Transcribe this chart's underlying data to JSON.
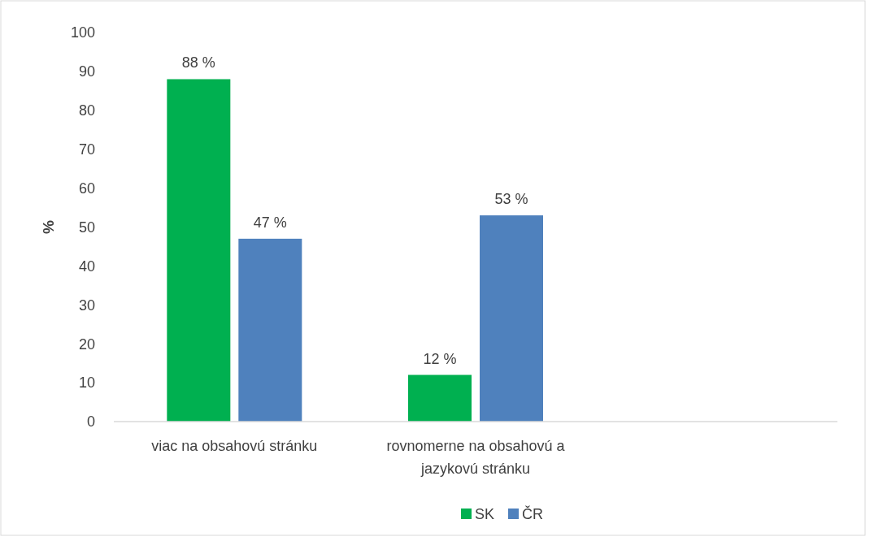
{
  "chart_data": {
    "type": "bar",
    "ylabel": "%",
    "categories": [
      "viac na obsahovú stránku",
      "rovnomerne na obsahovú a jazykovú stránku",
      null
    ],
    "series": [
      {
        "name": "SK",
        "color": "#00b050",
        "values": [
          88,
          12,
          null
        ],
        "value_labels": [
          "88 %",
          "12 %",
          null
        ]
      },
      {
        "name": "ČR",
        "color": "#4f81bd",
        "values": [
          47,
          53,
          null
        ],
        "value_labels": [
          "47 %",
          "53 %",
          null
        ]
      }
    ],
    "ylim": [
      0,
      100
    ],
    "yticks": [
      0,
      10,
      20,
      30,
      40,
      50,
      60,
      70,
      80,
      90,
      100
    ],
    "grid": false,
    "legend": "bottom"
  }
}
